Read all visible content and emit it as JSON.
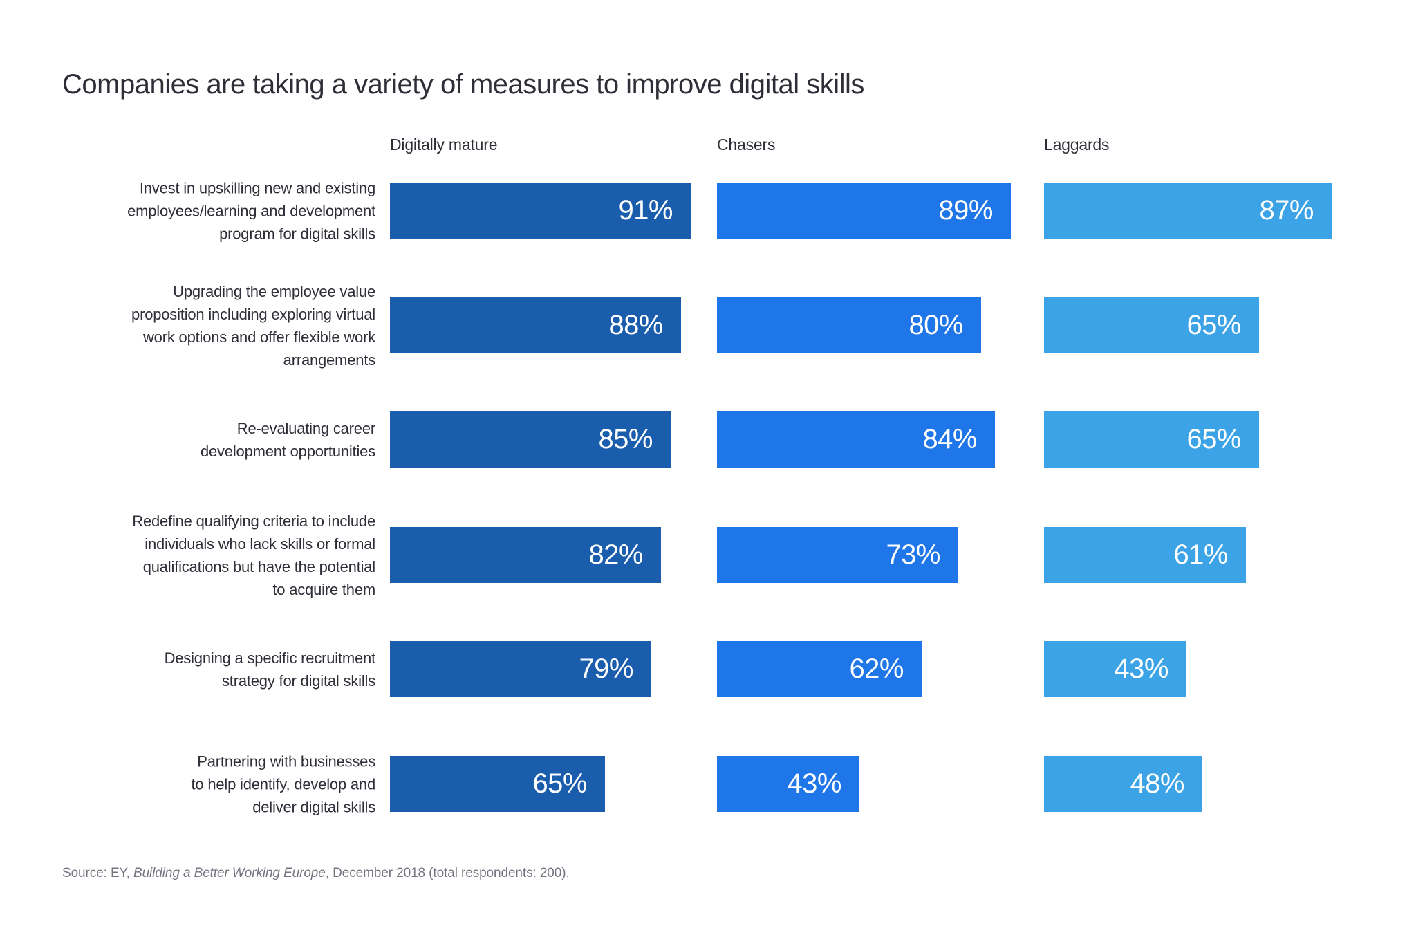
{
  "page": {
    "background": "#ffffff"
  },
  "chart_data": {
    "type": "bar",
    "orientation": "horizontal",
    "title": "Companies are taking a variety of measures to improve digital skills",
    "group_headers": [
      "Digitally mature",
      "Chasers",
      "Laggards"
    ],
    "categories": [
      "Invest in upskilling new and existing\nemployees/learning and development\nprogram for digital skills",
      "Upgrading the employee value\nproposition including exploring virtual\nwork options and offer flexible work\narrangements",
      "Re-evaluating career\ndevelopment opportunities",
      "Redefine qualifying criteria to include\nindividuals who lack skills or formal\nqualifications but have the potential\nto acquire them",
      "Designing a specific recruitment\nstrategy for digital skills",
      "Partnering with businesses\nto help identify, develop and\ndeliver digital skills"
    ],
    "series": [
      {
        "name": "Digitally mature",
        "color": "#1a5dad",
        "values": [
          91,
          88,
          85,
          82,
          79,
          65
        ]
      },
      {
        "name": "Chasers",
        "color": "#1f76e8",
        "values": [
          89,
          80,
          84,
          73,
          62,
          43
        ]
      },
      {
        "name": "Laggards",
        "color": "#3ba3e6",
        "values": [
          87,
          65,
          65,
          61,
          43,
          48
        ]
      }
    ],
    "value_suffix": "%",
    "xlim": [
      0,
      100
    ],
    "grid": false,
    "legend_position": "column-headers-top",
    "value_labels": "inside-end-white"
  },
  "source": {
    "prefix": "Source: EY, ",
    "work": "Building a Better Working Europe",
    "suffix": ", December 2018 (total respondents: 200)."
  },
  "colors": {
    "text": "#2e2e38",
    "source_text": "#747480",
    "value_text": "#ffffff",
    "background": "#ffffff"
  }
}
